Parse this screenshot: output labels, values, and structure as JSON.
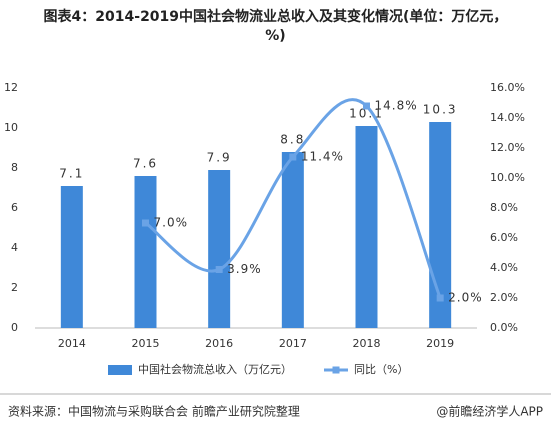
{
  "chart_data": {
    "type": "bar",
    "title": "图表4：2014-2019中国社会物流业总收入及其变化情况(单位：万亿元，%)",
    "categories": [
      "2014",
      "2015",
      "2016",
      "2017",
      "2018",
      "2019"
    ],
    "series": [
      {
        "name": "中国社会物流总收入（万亿元）",
        "type": "bar",
        "color": "#3f88d8",
        "values": [
          7.1,
          7.6,
          7.9,
          8.8,
          10.1,
          10.3
        ]
      },
      {
        "name": "同比（%）",
        "type": "line",
        "axis": "y2",
        "color": "#6aa3e6",
        "values": [
          null,
          7.0,
          3.9,
          11.4,
          14.8,
          2.0
        ],
        "value_labels": [
          null,
          "7.0%",
          "3.9%",
          "11.4%",
          "14.8%",
          "2.0%"
        ]
      }
    ],
    "ylim": [
      0,
      12
    ],
    "yticks": [
      0,
      2,
      4,
      6,
      8,
      10,
      12
    ],
    "y2lim": [
      0,
      16
    ],
    "y2ticks": [
      {
        "value": 0,
        "label": "0.0%"
      },
      {
        "value": 2,
        "label": "2.0%"
      },
      {
        "value": 4,
        "label": "4.0%"
      },
      {
        "value": 6,
        "label": "6.0%"
      },
      {
        "value": 8,
        "label": "8.0%"
      },
      {
        "value": 10,
        "label": "10.0%"
      },
      {
        "value": 12,
        "label": "12.0%"
      },
      {
        "value": 14,
        "label": "14.0%"
      },
      {
        "value": 16,
        "label": "16.0%"
      }
    ],
    "legend": "bottom",
    "source": "资料来源：中国物流与采购联合会 前瞻产业研究院整理",
    "credit": "@前瞻经济学人APP"
  }
}
